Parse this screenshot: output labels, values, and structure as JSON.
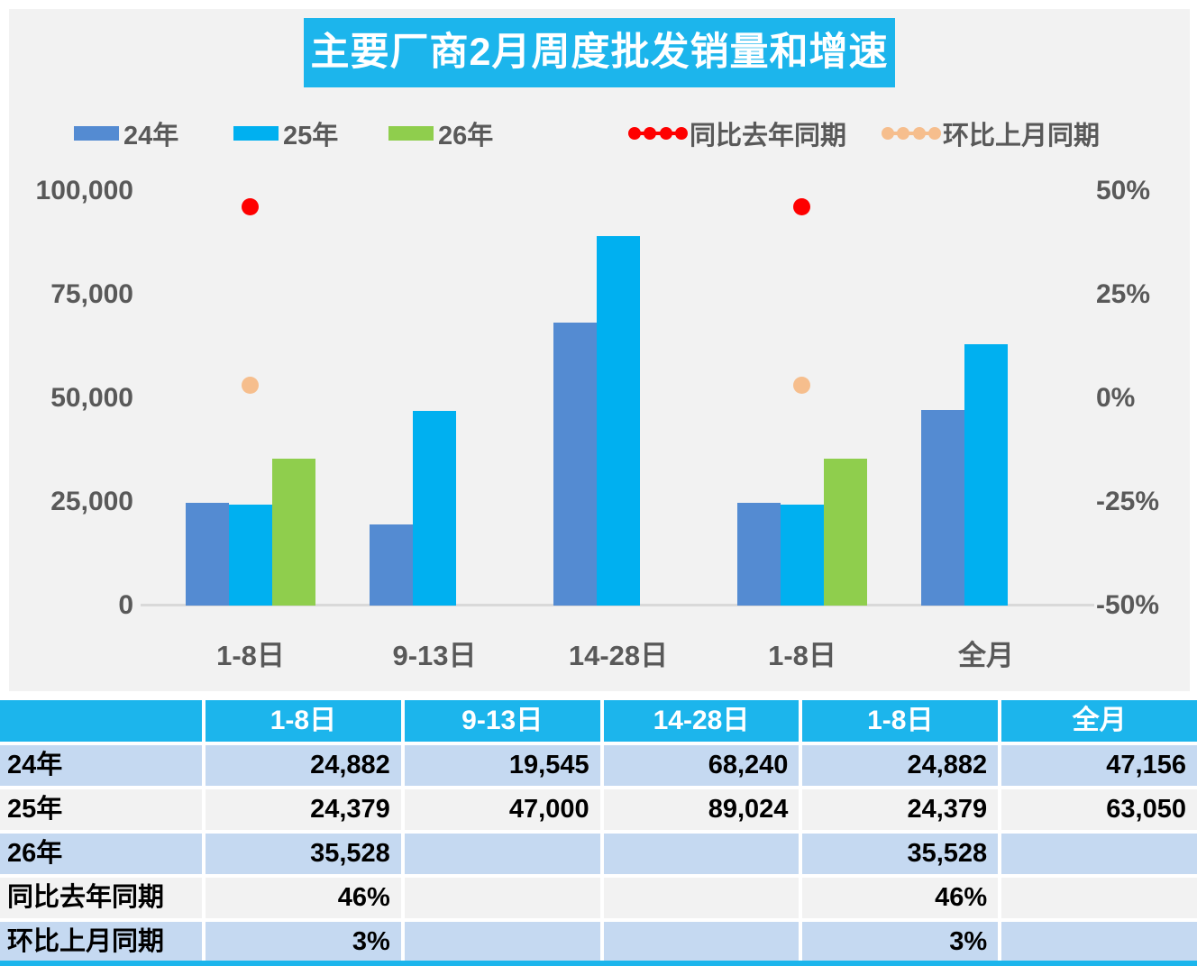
{
  "title": {
    "text": "主要厂商2月周度批发销量和增速"
  },
  "colors": {
    "accent_cyan": "#1CB5EC",
    "bar_24": "#548BD2",
    "bar_25": "#00B0F0",
    "bar_26": "#8FCE4D",
    "yoy_red": "#FE0000",
    "mom_peach": "#F6BE8D",
    "panel_bg": "#F2F2F2",
    "row_blue": "#C5D9F1",
    "row_gray": "#F2F2F2",
    "axis_text": "#595959"
  },
  "legend": {
    "items": [
      {
        "label": "24年",
        "type": "swatch",
        "color": "#548BD2"
      },
      {
        "label": "25年",
        "type": "swatch",
        "color": "#00B0F0"
      },
      {
        "label": "26年",
        "type": "swatch",
        "color": "#8FCE4D"
      },
      {
        "label": "同比去年同期",
        "type": "line-dots",
        "color": "#FE0000"
      },
      {
        "label": "环比上月同期",
        "type": "line-dots",
        "color": "#F6BE8D"
      }
    ]
  },
  "chart_data": {
    "type": "bar",
    "subtype": "combo-bar-scatter",
    "title": "主要厂商2月周度批发销量和增速",
    "legend_position": "top",
    "grid": false,
    "categories": [
      "1-8日",
      "9-13日",
      "14-28日",
      "1-8日",
      "全月"
    ],
    "series": [
      {
        "name": "24年",
        "type": "bar",
        "axis": "left",
        "color": "#548BD2",
        "values": [
          24882,
          19545,
          68240,
          24882,
          47156
        ]
      },
      {
        "name": "25年",
        "type": "bar",
        "axis": "left",
        "color": "#00B0F0",
        "values": [
          24379,
          47000,
          89024,
          24379,
          63050
        ]
      },
      {
        "name": "26年",
        "type": "bar",
        "axis": "left",
        "color": "#8FCE4D",
        "values": [
          35528,
          null,
          null,
          35528,
          null
        ]
      },
      {
        "name": "同比去年同期",
        "type": "scatter",
        "axis": "right",
        "color": "#FE0000",
        "unit": "%",
        "values": [
          46,
          null,
          null,
          46,
          null
        ]
      },
      {
        "name": "环比上月同期",
        "type": "scatter",
        "axis": "right",
        "color": "#F6BE8D",
        "unit": "%",
        "values": [
          3,
          null,
          null,
          3,
          null
        ]
      }
    ],
    "left_axis": {
      "min": 0,
      "max": 100000,
      "ticks": [
        {
          "label": "100,000",
          "value": 100000
        },
        {
          "label": "75,000",
          "value": 75000
        },
        {
          "label": "50,000",
          "value": 50000
        },
        {
          "label": "25,000",
          "value": 25000
        },
        {
          "label": "0",
          "value": 0
        }
      ]
    },
    "right_axis": {
      "min": -50,
      "max": 50,
      "ticks": [
        {
          "label": "50%",
          "value": 50
        },
        {
          "label": "25%",
          "value": 25
        },
        {
          "label": "0%",
          "value": 0
        },
        {
          "label": "-25%",
          "value": -25
        },
        {
          "label": "-50%",
          "value": -50
        }
      ]
    }
  },
  "table": {
    "header": [
      "",
      "1-8日",
      "9-13日",
      "14-28日",
      "1-8日",
      "全月"
    ],
    "rows": [
      {
        "label": "24年",
        "values": [
          "24,882",
          "19,545",
          "68,240",
          "24,882",
          "47,156"
        ]
      },
      {
        "label": "25年",
        "values": [
          "24,379",
          "47,000",
          "89,024",
          "24,379",
          "63,050"
        ]
      },
      {
        "label": "26年",
        "values": [
          "35,528",
          "",
          "",
          "35,528",
          ""
        ]
      },
      {
        "label": "同比去年同期",
        "values": [
          "46%",
          "",
          "",
          "46%",
          ""
        ]
      },
      {
        "label": "环比上月同期",
        "values": [
          "3%",
          "",
          "",
          "3%",
          ""
        ]
      }
    ]
  }
}
